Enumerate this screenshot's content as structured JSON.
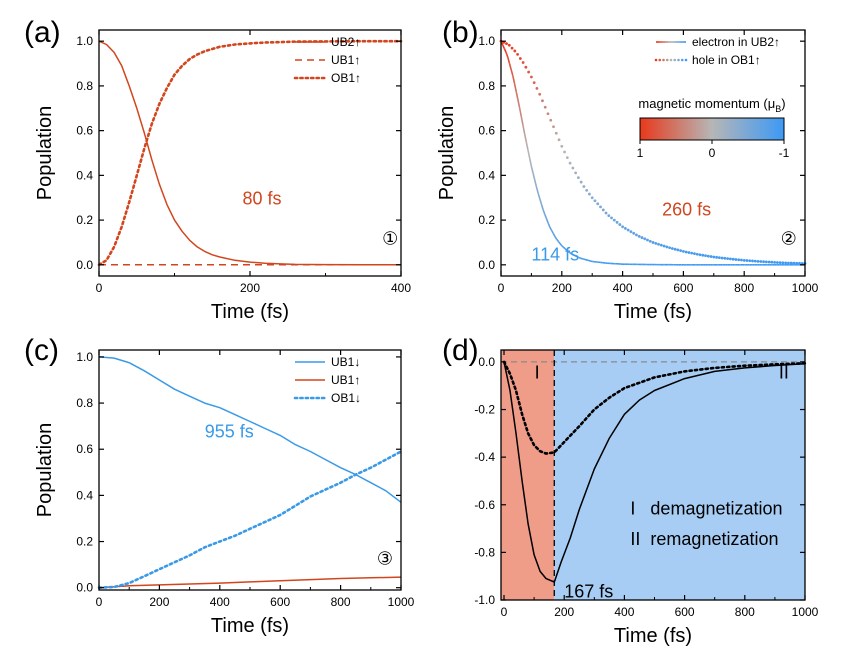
{
  "colors": {
    "red": "#d2461e",
    "blue": "#3a9ae8",
    "axis": "#000000",
    "region1": "#ef9c89",
    "region2": "#a7cdf4",
    "gradient_red": "#e8391b",
    "gradient_mid": "#b6b6b6",
    "gradient_blue": "#3d99f6"
  },
  "chart_data": [
    {
      "id": "a",
      "type": "line",
      "panel_label": "(a)",
      "xlabel": "Time (fs)",
      "ylabel": "Population",
      "xlim": [
        0,
        400
      ],
      "ylim": [
        -0.05,
        1.05
      ],
      "xticks": [
        0,
        200,
        400
      ],
      "xtick_labels": [
        "0",
        "200",
        "400"
      ],
      "yticks": [
        0,
        0.2,
        0.4,
        0.6,
        0.8,
        1.0
      ],
      "ytick_labels": [
        "0.0",
        "0.2",
        "0.4",
        "0.6",
        "0.8",
        "1.0"
      ],
      "legend": {
        "position": "top-right"
      },
      "series": [
        {
          "name": "UB2↑",
          "color": "#d2461e",
          "style": "solid",
          "x": [
            0,
            10,
            20,
            30,
            40,
            50,
            60,
            70,
            80,
            90,
            100,
            110,
            120,
            130,
            140,
            150,
            160,
            180,
            200,
            220,
            240,
            260,
            300,
            350,
            400
          ],
          "y": [
            1.0,
            0.985,
            0.95,
            0.89,
            0.8,
            0.7,
            0.59,
            0.47,
            0.36,
            0.27,
            0.2,
            0.15,
            0.11,
            0.08,
            0.06,
            0.045,
            0.035,
            0.02,
            0.012,
            0.007,
            0.004,
            0.002,
            0.001,
            0.0,
            0.0
          ]
        },
        {
          "name": "UB1↑",
          "color": "#d2461e",
          "style": "dashed",
          "x": [
            0,
            400
          ],
          "y": [
            0.0,
            0.0
          ]
        },
        {
          "name": "OB1↑",
          "color": "#d2461e",
          "style": "dotted",
          "x": [
            0,
            10,
            20,
            30,
            40,
            50,
            60,
            70,
            80,
            90,
            100,
            110,
            120,
            130,
            140,
            150,
            160,
            180,
            200,
            220,
            240,
            260,
            300,
            350,
            400
          ],
          "y": [
            0.0,
            0.02,
            0.08,
            0.17,
            0.28,
            0.4,
            0.52,
            0.63,
            0.72,
            0.79,
            0.85,
            0.89,
            0.92,
            0.94,
            0.955,
            0.965,
            0.975,
            0.985,
            0.99,
            0.994,
            0.996,
            0.998,
            0.999,
            1.0,
            1.0
          ]
        }
      ],
      "annotations": [
        {
          "text": "80 fs",
          "x": 190,
          "y": 0.27,
          "color": "#d2461e"
        },
        {
          "text": "①",
          "x": 375,
          "y": 0.09,
          "color": "#000000"
        }
      ]
    },
    {
      "id": "b",
      "type": "line",
      "panel_label": "(b)",
      "xlabel": "Time (fs)",
      "ylabel": "Population",
      "xlim": [
        0,
        1000
      ],
      "ylim": [
        -0.05,
        1.05
      ],
      "xticks": [
        0,
        200,
        400,
        600,
        800,
        1000
      ],
      "xtick_labels": [
        "0",
        "200",
        "400",
        "600",
        "800",
        "1000"
      ],
      "yticks": [
        0,
        0.2,
        0.4,
        0.6,
        0.8,
        1.0
      ],
      "ytick_labels": [
        "0.0",
        "0.2",
        "0.4",
        "0.6",
        "0.8",
        "1.0"
      ],
      "legend": {
        "position": "top-right"
      },
      "series": [
        {
          "name": "electron in UB2↑",
          "color": "gradient",
          "style": "solid",
          "x": [
            0,
            20,
            40,
            60,
            80,
            100,
            120,
            140,
            160,
            180,
            200,
            230,
            260,
            300,
            350,
            400,
            500,
            600,
            800,
            1000
          ],
          "y": [
            1.0,
            0.94,
            0.84,
            0.71,
            0.57,
            0.44,
            0.33,
            0.24,
            0.17,
            0.12,
            0.085,
            0.05,
            0.03,
            0.015,
            0.007,
            0.003,
            0.001,
            0.0,
            0.0,
            0.0
          ]
        },
        {
          "name": "hole in OB1↑",
          "color": "gradient",
          "style": "dotted",
          "x": [
            0,
            25,
            50,
            75,
            100,
            125,
            150,
            175,
            200,
            225,
            250,
            275,
            300,
            350,
            400,
            450,
            500,
            550,
            600,
            650,
            700,
            750,
            800,
            850,
            900,
            950,
            1000
          ],
          "y": [
            1.0,
            0.985,
            0.95,
            0.9,
            0.84,
            0.77,
            0.69,
            0.61,
            0.53,
            0.46,
            0.4,
            0.345,
            0.3,
            0.225,
            0.17,
            0.13,
            0.1,
            0.078,
            0.06,
            0.046,
            0.035,
            0.027,
            0.02,
            0.015,
            0.011,
            0.008,
            0.006
          ]
        }
      ],
      "colorbar": {
        "title": "magnetic momentum (μ",
        "title_sub": "B",
        "title_end": ")",
        "ticks": [
          "1",
          "0",
          "-1"
        ]
      },
      "annotations": [
        {
          "text": "114 fs",
          "x": 100,
          "y": 0.02,
          "color": "#3a9ae8"
        },
        {
          "text": "260 fs",
          "x": 530,
          "y": 0.22,
          "color": "#d2461e"
        },
        {
          "text": "②",
          "x": 920,
          "y": 0.09,
          "color": "#000000"
        }
      ]
    },
    {
      "id": "c",
      "type": "line",
      "panel_label": "(c)",
      "xlabel": "Time (fs)",
      "ylabel": "Population",
      "xlim": [
        0,
        1000
      ],
      "ylim": [
        -0.01,
        1.03
      ],
      "xticks": [
        0,
        200,
        400,
        600,
        800,
        1000
      ],
      "xtick_labels": [
        "0",
        "200",
        "400",
        "600",
        "800",
        "1000"
      ],
      "yticks": [
        0,
        0.2,
        0.4,
        0.6,
        0.8,
        1.0
      ],
      "ytick_labels": [
        "0.0",
        "0.2",
        "0.4",
        "0.6",
        "0.8",
        "1.0"
      ],
      "legend": {
        "position": "top-right"
      },
      "series": [
        {
          "name": "UB1↓",
          "color": "#3a9ae8",
          "style": "solid",
          "x": [
            0,
            50,
            100,
            150,
            200,
            250,
            300,
            350,
            400,
            450,
            500,
            550,
            600,
            650,
            700,
            750,
            800,
            850,
            900,
            950,
            1000
          ],
          "y": [
            1.0,
            0.995,
            0.975,
            0.94,
            0.9,
            0.86,
            0.83,
            0.8,
            0.78,
            0.75,
            0.72,
            0.69,
            0.66,
            0.62,
            0.59,
            0.555,
            0.52,
            0.49,
            0.455,
            0.42,
            0.37
          ]
        },
        {
          "name": "UB1↑",
          "color": "#d2461e",
          "style": "solid",
          "x": [
            0,
            100,
            200,
            300,
            400,
            500,
            600,
            700,
            800,
            900,
            1000
          ],
          "y": [
            0.0,
            0.008,
            0.012,
            0.016,
            0.02,
            0.025,
            0.03,
            0.035,
            0.04,
            0.043,
            0.046
          ]
        },
        {
          "name": "OB1↓",
          "color": "#3a9ae8",
          "style": "dotted",
          "x": [
            0,
            50,
            100,
            150,
            200,
            250,
            300,
            350,
            400,
            450,
            500,
            550,
            600,
            650,
            700,
            750,
            800,
            850,
            900,
            950,
            1000
          ],
          "y": [
            0.0,
            0.003,
            0.02,
            0.05,
            0.08,
            0.11,
            0.14,
            0.175,
            0.2,
            0.225,
            0.255,
            0.285,
            0.315,
            0.355,
            0.395,
            0.425,
            0.455,
            0.49,
            0.52,
            0.555,
            0.59
          ]
        }
      ],
      "annotations": [
        {
          "text": "955 fs",
          "x": 350,
          "y": 0.65,
          "color": "#3a9ae8"
        },
        {
          "text": "③",
          "x": 920,
          "y": 0.1,
          "color": "#000000"
        }
      ]
    },
    {
      "id": "d",
      "type": "line",
      "panel_label": "(d)",
      "xlabel": "Time (fs)",
      "ylabel": "",
      "xlim": [
        -10,
        1000
      ],
      "ylim": [
        -1.0,
        0.05
      ],
      "xticks": [
        0,
        200,
        400,
        600,
        800,
        1000
      ],
      "xtick_labels": [
        "0",
        "200",
        "400",
        "600",
        "800",
        "1000"
      ],
      "yticks": [
        0.0,
        -0.2,
        -0.4,
        -0.6,
        -0.8,
        -1.0
      ],
      "ytick_labels": [
        "0.0",
        "-0.2",
        "-0.4",
        "-0.6",
        "-0.8",
        "-1.0"
      ],
      "regions": [
        {
          "label": "I",
          "x0": -10,
          "x1": 167,
          "color": "#ef9c89"
        },
        {
          "label": "II",
          "x0": 167,
          "x1": 1000,
          "color": "#a7cdf4"
        }
      ],
      "vline": 167,
      "hline": 0.0,
      "series": [
        {
          "name": "solid",
          "color": "#000000",
          "style": "solid",
          "x": [
            0,
            20,
            40,
            60,
            80,
            100,
            120,
            140,
            167,
            190,
            220,
            250,
            300,
            350,
            400,
            450,
            500,
            600,
            700,
            800,
            900,
            1000
          ],
          "y": [
            0.0,
            -0.12,
            -0.3,
            -0.5,
            -0.68,
            -0.81,
            -0.88,
            -0.91,
            -0.925,
            -0.84,
            -0.74,
            -0.62,
            -0.45,
            -0.32,
            -0.22,
            -0.16,
            -0.12,
            -0.07,
            -0.04,
            -0.025,
            -0.015,
            -0.008
          ]
        },
        {
          "name": "dotted",
          "color": "#000000",
          "style": "dotted",
          "x": [
            0,
            20,
            40,
            60,
            80,
            100,
            120,
            140,
            167,
            190,
            220,
            250,
            300,
            350,
            400,
            500,
            600,
            700,
            800,
            900,
            1000
          ],
          "y": [
            0.0,
            -0.05,
            -0.12,
            -0.22,
            -0.3,
            -0.35,
            -0.375,
            -0.385,
            -0.38,
            -0.35,
            -0.31,
            -0.27,
            -0.2,
            -0.15,
            -0.11,
            -0.065,
            -0.04,
            -0.025,
            -0.016,
            -0.01,
            -0.006
          ]
        }
      ],
      "annotations": [
        {
          "text": "167 fs",
          "x": 200,
          "y": -0.99,
          "color": "#000000"
        },
        {
          "text": "I",
          "x": 110,
          "y": -0.07,
          "color": "#000000"
        },
        {
          "text": "II",
          "x": 930,
          "y": -0.07,
          "color": "#000000"
        },
        {
          "text": "I   demagnetization",
          "x": 420,
          "y": -0.64,
          "color": "#000000"
        },
        {
          "text": "II  remagnetization",
          "x": 420,
          "y": -0.77,
          "color": "#000000"
        }
      ]
    }
  ]
}
